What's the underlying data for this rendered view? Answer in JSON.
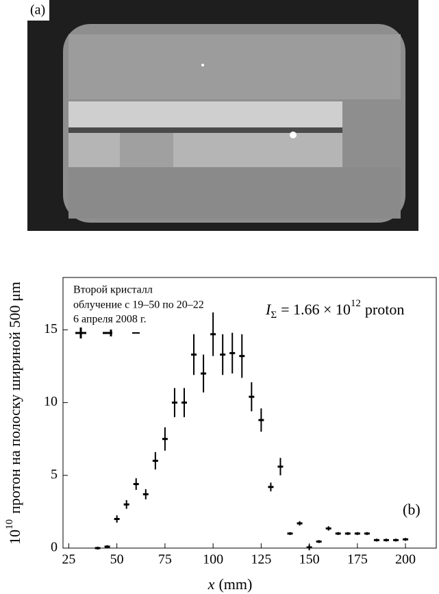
{
  "panel_a": {
    "label": "(a)"
  },
  "chart_data": {
    "type": "errorbar",
    "x_label": {
      "symbol": "x",
      "rest": "(mm)"
    },
    "y_label": {
      "factor": "10",
      "exponent": "10",
      "text": "протон на полоску шириной 500 μm"
    },
    "annotations": [
      "Второй кристалл",
      "облучение с 19–50 по 20–22",
      "6 апреля 2008 г."
    ],
    "formula": {
      "symbol": "I",
      "subscript": "Σ",
      "text": "= 1.66 × 10",
      "superscript": "12",
      "unit": "proton"
    },
    "panel_label": "(b)",
    "color": "#000000",
    "x": [
      40,
      45,
      50,
      55,
      60,
      65,
      70,
      75,
      80,
      85,
      90,
      95,
      100,
      105,
      110,
      115,
      120,
      125,
      130,
      135,
      140,
      145,
      150,
      155,
      160,
      165,
      170,
      175,
      180,
      185,
      190,
      195,
      200
    ],
    "values": [
      0,
      0.1,
      2,
      3,
      4.4,
      3.7,
      6,
      7.5,
      10,
      10,
      13.3,
      12,
      14.7,
      13.3,
      13.4,
      13.2,
      10.4,
      8.8,
      4.2,
      5.6,
      1,
      1.7,
      0.05,
      0.45,
      1.35,
      1,
      1,
      1,
      1,
      0.55,
      0.55,
      0.55,
      0.6
    ],
    "errors": [
      0.1,
      0.1,
      0.25,
      0.3,
      0.4,
      0.35,
      0.6,
      0.8,
      1,
      1,
      1.4,
      1.3,
      1.5,
      1.4,
      1.4,
      1.5,
      1,
      0.8,
      0.3,
      0.6,
      0.1,
      0.15,
      0.2,
      0.1,
      0.15,
      0.1,
      0.1,
      0.1,
      0.1,
      0.1,
      0.1,
      0.1,
      0.1
    ],
    "xlim": [
      22,
      216
    ],
    "ylim": [
      0,
      18.6
    ],
    "xticks": [
      25,
      50,
      75,
      100,
      125,
      150,
      175,
      200
    ],
    "yticks": [
      0,
      5,
      10,
      15
    ]
  }
}
